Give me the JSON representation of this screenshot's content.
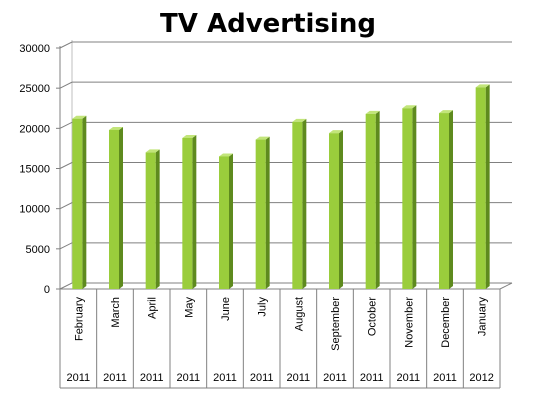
{
  "chart_data": {
    "type": "bar",
    "title": "TV Advertising",
    "xlabel": "",
    "ylabel": "",
    "ylim": [
      0,
      30000
    ],
    "yticks": [
      0,
      5000,
      10000,
      15000,
      20000,
      25000,
      30000
    ],
    "grid": true,
    "legend": "none",
    "categories": [
      "February",
      "March",
      "April",
      "May",
      "June",
      "July",
      "August",
      "September",
      "October",
      "November",
      "December",
      "January"
    ],
    "years": [
      "2011",
      "2011",
      "2011",
      "2011",
      "2011",
      "2011",
      "2011",
      "2011",
      "2011",
      "2011",
      "2011",
      "2012"
    ],
    "values": [
      21200,
      19800,
      17000,
      18800,
      16500,
      18600,
      20800,
      19400,
      21800,
      22500,
      21900,
      25100
    ],
    "colors": {
      "bar_front": "#9acd3c",
      "bar_side": "#5e8a1e",
      "bar_top": "#c2e57a",
      "grid": "#808080"
    }
  }
}
